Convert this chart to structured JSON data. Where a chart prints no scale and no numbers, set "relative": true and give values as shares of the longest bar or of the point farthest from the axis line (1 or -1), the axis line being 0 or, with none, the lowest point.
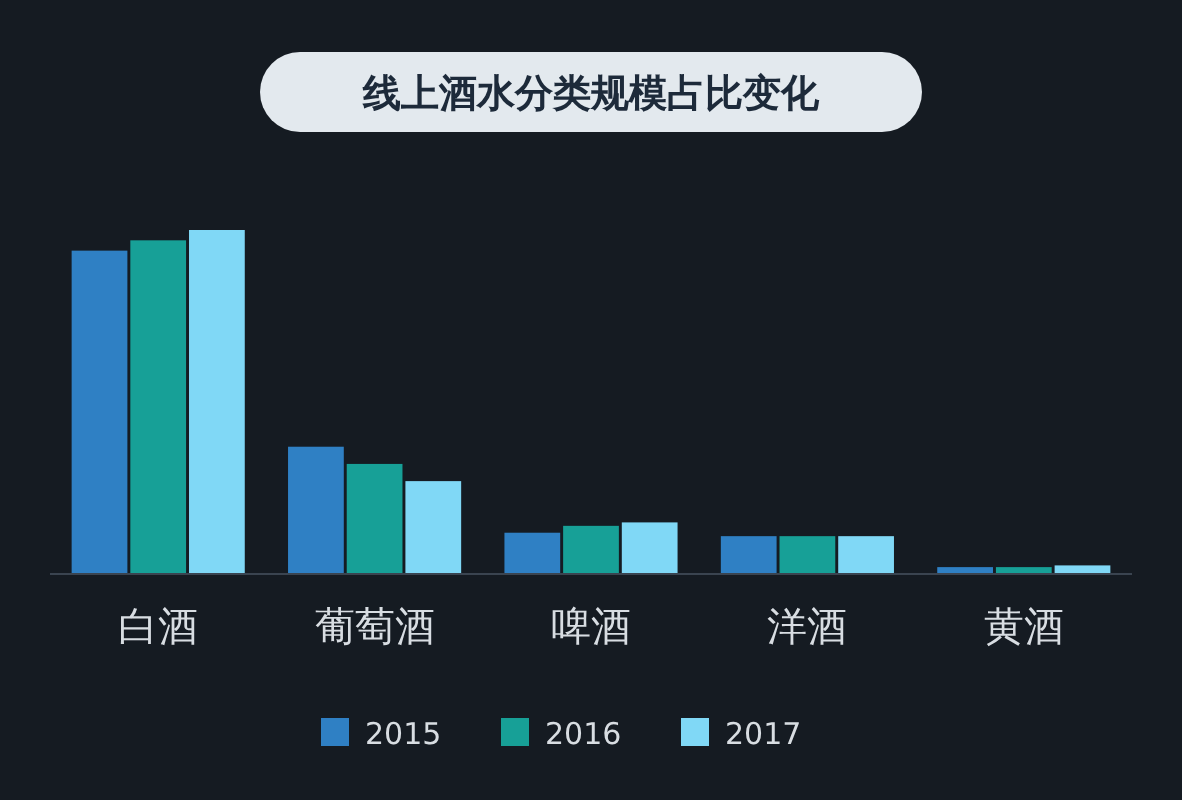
{
  "chart_data": {
    "type": "bar",
    "title": "线上酒水分类规模占比变化",
    "relative": true,
    "categories": [
      "白酒",
      "葡萄酒",
      "啤酒",
      "洋酒",
      "黄酒"
    ],
    "series": [
      {
        "name": "2015",
        "color": "#2f80c4",
        "values": [
          0.94,
          0.37,
          0.12,
          0.11,
          0.02
        ]
      },
      {
        "name": "2016",
        "color": "#17a097",
        "values": [
          0.97,
          0.32,
          0.14,
          0.11,
          0.02
        ]
      },
      {
        "name": "2017",
        "color": "#80d8f6",
        "values": [
          1,
          0.27,
          0.15,
          0.11,
          0.025
        ]
      }
    ],
    "legend": "bottom",
    "grid": false
  }
}
